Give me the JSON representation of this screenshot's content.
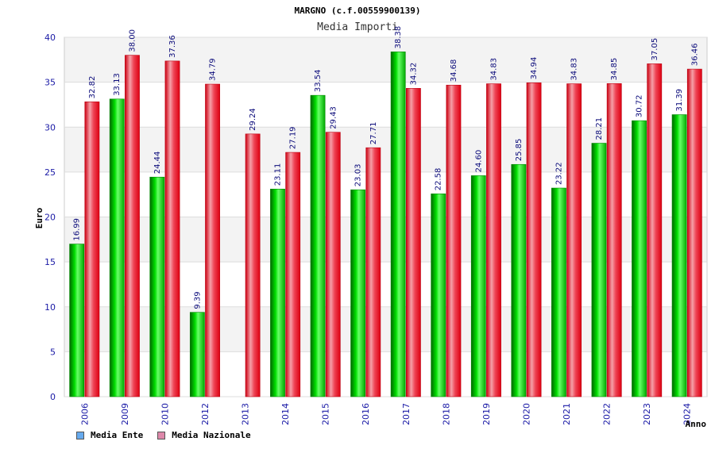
{
  "chart_data": {
    "type": "bar",
    "title": "MARGNO (c.f.00559900139)",
    "subtitle": "Media Importi",
    "xlabel": "Anno",
    "ylabel": "Euro",
    "ylim": [
      0,
      40
    ],
    "yticks": [
      0,
      5,
      10,
      15,
      20,
      25,
      30,
      35,
      40
    ],
    "grid": true,
    "legend_position": "bottom-left",
    "categories": [
      "2006",
      "2009",
      "2010",
      "2012",
      "2013",
      "2014",
      "2015",
      "2016",
      "2017",
      "2018",
      "2019",
      "2020",
      "2021",
      "2022",
      "2023",
      "2024"
    ],
    "series": [
      {
        "name": "Media Ente",
        "color": "#00cc00",
        "legend_color": "#66aaee",
        "values": [
          16.99,
          33.13,
          24.44,
          9.39,
          null,
          23.11,
          33.54,
          23.03,
          38.38,
          22.58,
          24.6,
          25.85,
          23.22,
          28.21,
          30.72,
          31.39
        ],
        "labels": [
          "16.99",
          "33.13",
          "24.44",
          "9.39",
          "",
          "23.11",
          "33.54",
          "23.03",
          "38.38",
          "22.58",
          "24.60",
          "25.85",
          "23.22",
          "28.21",
          "30.72",
          "31.39"
        ]
      },
      {
        "name": "Media Nazionale",
        "color": "#ee1122",
        "legend_color": "#dd88aa",
        "values": [
          32.82,
          38.0,
          37.36,
          34.79,
          29.24,
          27.19,
          29.43,
          27.71,
          34.32,
          34.68,
          34.83,
          34.94,
          34.83,
          34.85,
          37.05,
          36.46
        ],
        "labels": [
          "32.82",
          "38.00",
          "37.36",
          "34.79",
          "29.24",
          "27.19",
          "29.43",
          "27.71",
          "34.32",
          "34.68",
          "34.83",
          "34.94",
          "34.83",
          "34.85",
          "37.05",
          "36.46"
        ]
      }
    ]
  }
}
